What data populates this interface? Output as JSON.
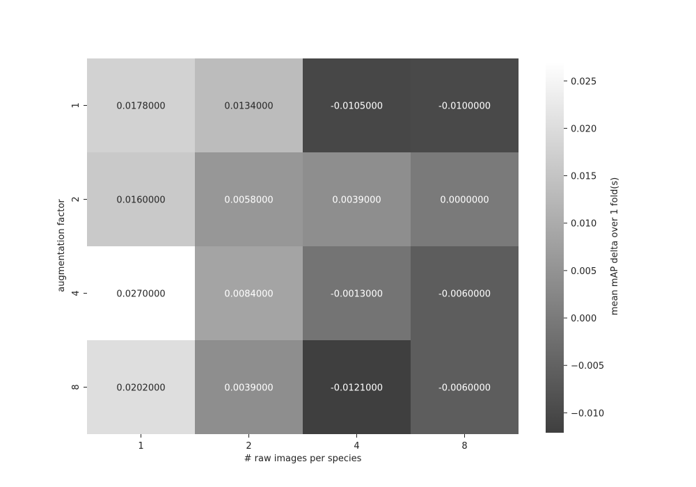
{
  "chart_data": {
    "type": "heatmap",
    "title": "",
    "xlabel": "# raw images per species",
    "ylabel": "augmentation factor",
    "x_categories": [
      "1",
      "2",
      "4",
      "8"
    ],
    "y_categories": [
      "1",
      "2",
      "4",
      "8"
    ],
    "values": [
      [
        0.0178,
        0.0134,
        -0.0105,
        -0.01
      ],
      [
        0.016,
        0.0058,
        0.0039,
        0.0
      ],
      [
        0.027,
        0.0084,
        -0.0013,
        -0.006
      ],
      [
        0.0202,
        0.0039,
        -0.0121,
        -0.006
      ]
    ],
    "cell_labels": [
      [
        "0.0178000",
        "0.0134000",
        "-0.0105000",
        "-0.0100000"
      ],
      [
        "0.0160000",
        "0.0058000",
        "0.0039000",
        "0.0000000"
      ],
      [
        "0.0270000",
        "0.0084000",
        "-0.0013000",
        "-0.0060000"
      ],
      [
        "0.0202000",
        "0.0039000",
        "-0.0121000",
        "-0.0060000"
      ]
    ],
    "colorbar": {
      "label": "mean mAP delta over 1 fold(s)",
      "vmin": -0.0121,
      "vmax": 0.027,
      "ticks": [
        0.025,
        0.02,
        0.015,
        0.01,
        0.005,
        0.0,
        -0.005,
        -0.01
      ],
      "tick_labels": [
        "0.025",
        "0.020",
        "0.015",
        "0.010",
        "0.005",
        "0.000",
        "−0.005",
        "−0.010"
      ]
    },
    "colormap": {
      "low": "#3f3f3f",
      "high": "#ffffff"
    },
    "grid": false
  }
}
